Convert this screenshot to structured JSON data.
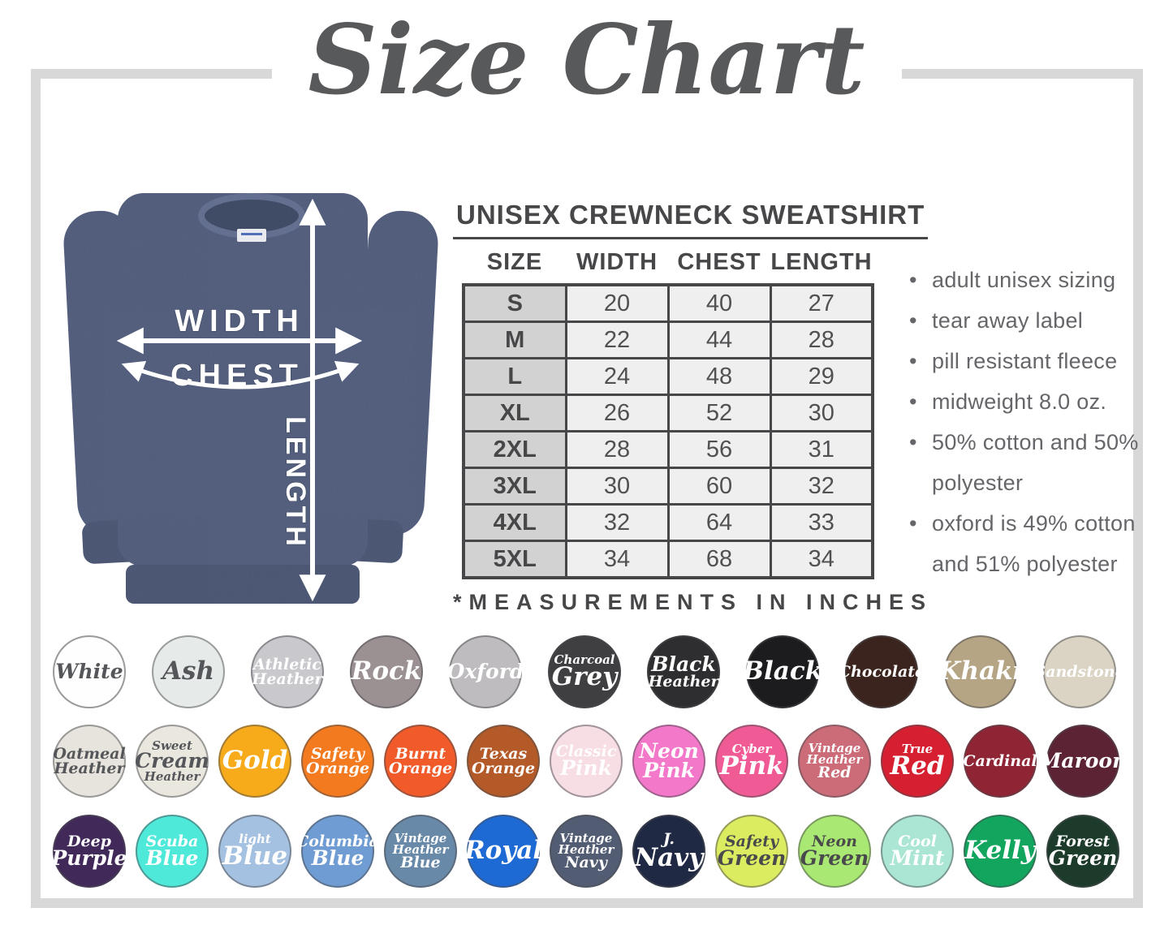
{
  "title": "Size Chart",
  "colors": {
    "shirt": "#4d5878",
    "shirt_trim": "#46516f",
    "collar": "#39445f",
    "collar_rim": "#5e6a8c",
    "frame": "#d8d8d8",
    "ink": "#47474a",
    "title_ink": "#58595b",
    "cell": "#f0efef",
    "cell_size": "#d3d2d2",
    "feature_ink": "#66666a"
  },
  "diagram": {
    "width_label": "WIDTH",
    "chest_label": "CHEST",
    "length_label": "LENGTH"
  },
  "spec": {
    "heading": "UNISEX CREWNECK SWEATSHIRT",
    "table": {
      "columns": [
        "SIZE",
        "WIDTH",
        "CHEST",
        "LENGTH"
      ],
      "rows": [
        {
          "size": "S",
          "width": "20",
          "chest": "40",
          "length": "27"
        },
        {
          "size": "M",
          "width": "22",
          "chest": "44",
          "length": "28"
        },
        {
          "size": "L",
          "width": "24",
          "chest": "48",
          "length": "29"
        },
        {
          "size": "XL",
          "width": "26",
          "chest": "52",
          "length": "30"
        },
        {
          "size": "2XL",
          "width": "28",
          "chest": "56",
          "length": "31"
        },
        {
          "size": "3XL",
          "width": "30",
          "chest": "60",
          "length": "32"
        },
        {
          "size": "4XL",
          "width": "32",
          "chest": "64",
          "length": "33"
        },
        {
          "size": "5XL",
          "width": "34",
          "chest": "68",
          "length": "34"
        }
      ],
      "footnote": "*MEASUREMENTS IN INCHES"
    },
    "features": {
      "bullet": "•",
      "items": [
        "adult unisex sizing",
        "tear away label",
        "pill resistant fleece",
        "midweight 8.0 oz.",
        "50% cotton and 50% polyester",
        "oxford is 49% cotton and 51% polyester"
      ]
    }
  },
  "swatch_rows": [
    [
      {
        "label": "White",
        "bg": "#fefefe",
        "fg": "#55565a",
        "border": "#9a9a9a",
        "lines": [
          {
            "t": "White",
            "s": "lg"
          }
        ]
      },
      {
        "label": "Ash",
        "bg": "#e6ebe9",
        "fg": "#55565a",
        "lines": [
          {
            "t": "Ash",
            "s": "xl"
          }
        ]
      },
      {
        "label": "Athletic Heather",
        "bg": "#c8c8cd",
        "fg": "#ffffff",
        "lines": [
          {
            "t": "Athletic",
            "s": "md"
          },
          {
            "t": "Heather",
            "s": "md"
          }
        ]
      },
      {
        "label": "Rock",
        "bg": "#9b9193",
        "fg": "#ffffff",
        "lines": [
          {
            "t": "Rock",
            "s": "xl"
          }
        ]
      },
      {
        "label": "Oxford",
        "bg": "#bebcbf",
        "fg": "#ffffff",
        "lines": [
          {
            "t": "Oxford",
            "s": "lg"
          }
        ]
      },
      {
        "label": "Charcoal Grey",
        "bg": "#3f3f42",
        "fg": "#ffffff",
        "lines": [
          {
            "t": "Charcoal",
            "s": "sm"
          },
          {
            "t": "Grey",
            "s": "xl"
          }
        ]
      },
      {
        "label": "Black Heather",
        "bg": "#2e2e30",
        "fg": "#ffffff",
        "lines": [
          {
            "t": "Black",
            "s": "lg"
          },
          {
            "t": "Heather",
            "s": "md"
          }
        ]
      },
      {
        "label": "Black",
        "bg": "#1c1c1e",
        "fg": "#ffffff",
        "lines": [
          {
            "t": "Black",
            "s": "xl"
          }
        ]
      },
      {
        "label": "Chocolate",
        "bg": "#3b241d",
        "fg": "#ffffff",
        "lines": [
          {
            "t": "Chocolate",
            "s": "md"
          }
        ]
      },
      {
        "label": "Khaki",
        "bg": "#b5a584",
        "fg": "#ffffff",
        "lines": [
          {
            "t": "Khaki",
            "s": "xl"
          }
        ]
      },
      {
        "label": "Sandstone",
        "bg": "#dbd4c5",
        "fg": "#ffffff",
        "lines": [
          {
            "t": "Sandstone",
            "s": "md"
          }
        ]
      }
    ],
    [
      {
        "label": "Oatmeal Heather",
        "bg": "#e7e4dd",
        "fg": "#55565a",
        "lines": [
          {
            "t": "Oatmeal",
            "s": "md"
          },
          {
            "t": "Heather",
            "s": "md"
          }
        ]
      },
      {
        "label": "Sweet Cream Heather",
        "bg": "#eae7df",
        "fg": "#55565a",
        "lines": [
          {
            "t": "Sweet",
            "s": "sm"
          },
          {
            "t": "Cream",
            "s": "lg"
          },
          {
            "t": "Heather",
            "s": "sm"
          }
        ]
      },
      {
        "label": "Gold",
        "bg": "#f7ab1b",
        "fg": "#ffffff",
        "lines": [
          {
            "t": "Gold",
            "s": "xl"
          }
        ]
      },
      {
        "label": "Safety Orange",
        "bg": "#f47a20",
        "fg": "#ffffff",
        "lines": [
          {
            "t": "Safety",
            "s": "md"
          },
          {
            "t": "Orange",
            "s": "md"
          }
        ]
      },
      {
        "label": "Burnt Orange",
        "bg": "#f15a29",
        "fg": "#ffffff",
        "lines": [
          {
            "t": "Burnt",
            "s": "md"
          },
          {
            "t": "Orange",
            "s": "md"
          }
        ]
      },
      {
        "label": "Texas Orange",
        "bg": "#b45a28",
        "fg": "#ffffff",
        "lines": [
          {
            "t": "Texas",
            "s": "md"
          },
          {
            "t": "Orange",
            "s": "md"
          }
        ]
      },
      {
        "label": "Classic Pink",
        "bg": "#f7dde4",
        "fg": "#ffffff",
        "lines": [
          {
            "t": "Classic",
            "s": "md"
          },
          {
            "t": "Pink",
            "s": "lg"
          }
        ]
      },
      {
        "label": "Neon Pink",
        "bg": "#f478c9",
        "fg": "#ffffff",
        "lines": [
          {
            "t": "Neon",
            "s": "lg"
          },
          {
            "t": "Pink",
            "s": "lg"
          }
        ]
      },
      {
        "label": "Cyber Pink",
        "bg": "#f05b95",
        "fg": "#ffffff",
        "lines": [
          {
            "t": "Cyber",
            "s": "sm"
          },
          {
            "t": "Pink",
            "s": "xl"
          }
        ]
      },
      {
        "label": "Vintage Heather Red",
        "bg": "#cb6c78",
        "fg": "#ffffff",
        "lines": [
          {
            "t": "Vintage",
            "s": "sm"
          },
          {
            "t": "Heather",
            "s": "sm"
          },
          {
            "t": "Red",
            "s": "md"
          }
        ]
      },
      {
        "label": "True Red",
        "bg": "#d62031",
        "fg": "#ffffff",
        "lines": [
          {
            "t": "True",
            "s": "sm"
          },
          {
            "t": "Red",
            "s": "xl"
          }
        ]
      },
      {
        "label": "Cardinal",
        "bg": "#8e2434",
        "fg": "#ffffff",
        "lines": [
          {
            "t": "Cardinal",
            "s": "md"
          }
        ]
      },
      {
        "label": "Maroon",
        "bg": "#5c2335",
        "fg": "#ffffff",
        "lines": [
          {
            "t": "Maroon",
            "s": "lg"
          }
        ]
      }
    ],
    [
      {
        "label": "Deep Purple",
        "bg": "#412959",
        "fg": "#ffffff",
        "lines": [
          {
            "t": "Deep",
            "s": "md"
          },
          {
            "t": "Purple",
            "s": "lg"
          }
        ]
      },
      {
        "label": "Scuba Blue",
        "bg": "#4fe9da",
        "fg": "#ffffff",
        "lines": [
          {
            "t": "Scuba",
            "s": "md"
          },
          {
            "t": "Blue",
            "s": "lg"
          }
        ]
      },
      {
        "label": "Light Blue",
        "bg": "#a5c1e1",
        "fg": "#ffffff",
        "lines": [
          {
            "t": "light",
            "s": "sm"
          },
          {
            "t": "Blue",
            "s": "xl"
          }
        ]
      },
      {
        "label": "Columbia Blue",
        "bg": "#6f9cd2",
        "fg": "#ffffff",
        "lines": [
          {
            "t": "Columbia",
            "s": "md"
          },
          {
            "t": "Blue",
            "s": "lg"
          }
        ]
      },
      {
        "label": "Vintage Heather Blue",
        "bg": "#6889a8",
        "fg": "#ffffff",
        "lines": [
          {
            "t": "Vintage",
            "s": "sm"
          },
          {
            "t": "Heather",
            "s": "sm"
          },
          {
            "t": "Blue",
            "s": "md"
          }
        ]
      },
      {
        "label": "Royal",
        "bg": "#1e6ad4",
        "fg": "#ffffff",
        "lines": [
          {
            "t": "Royal",
            "s": "xl"
          }
        ]
      },
      {
        "label": "Vintage Heather Navy",
        "bg": "#525c73",
        "fg": "#ffffff",
        "lines": [
          {
            "t": "Vintage",
            "s": "sm"
          },
          {
            "t": "Heather",
            "s": "sm"
          },
          {
            "t": "Navy",
            "s": "md"
          }
        ]
      },
      {
        "label": "J. Navy",
        "bg": "#1f2943",
        "fg": "#ffffff",
        "lines": [
          {
            "t": "J.",
            "s": "md"
          },
          {
            "t": "Navy",
            "s": "xl"
          }
        ]
      },
      {
        "label": "Safety Green",
        "bg": "#dcec61",
        "fg": "#4a4a4c",
        "lines": [
          {
            "t": "Safety",
            "s": "md"
          },
          {
            "t": "Green",
            "s": "lg"
          }
        ]
      },
      {
        "label": "Neon Green",
        "bg": "#a9e973",
        "fg": "#4a4a4c",
        "lines": [
          {
            "t": "Neon",
            "s": "md"
          },
          {
            "t": "Green",
            "s": "lg"
          }
        ]
      },
      {
        "label": "Cool Mint",
        "bg": "#abe6d4",
        "fg": "#ffffff",
        "lines": [
          {
            "t": "Cool",
            "s": "md"
          },
          {
            "t": "Mint",
            "s": "lg"
          }
        ]
      },
      {
        "label": "Kelly",
        "bg": "#12a55e",
        "fg": "#ffffff",
        "lines": [
          {
            "t": "Kelly",
            "s": "xl"
          }
        ]
      },
      {
        "label": "Forest Green",
        "bg": "#1c3b2b",
        "fg": "#ffffff",
        "lines": [
          {
            "t": "Forest",
            "s": "md"
          },
          {
            "t": "Green",
            "s": "lg"
          }
        ]
      }
    ]
  ]
}
